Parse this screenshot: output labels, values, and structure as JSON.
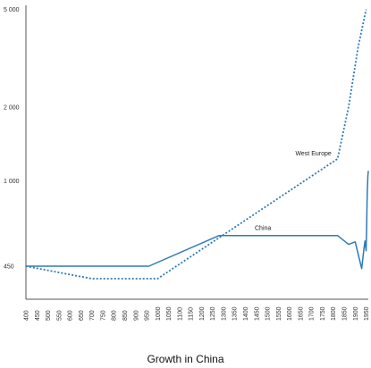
{
  "caption": "Growth in China",
  "chart_data": {
    "type": "line",
    "y_scale": "log",
    "ylim": [
      330,
      5200
    ],
    "xlim": [
      400,
      1960
    ],
    "y_ticks": [
      450,
      1000,
      2000,
      5000
    ],
    "y_tick_labels": [
      "450",
      "1 000",
      "2 000",
      "5 000"
    ],
    "x_ticks": [
      400,
      450,
      500,
      550,
      600,
      650,
      700,
      750,
      800,
      850,
      900,
      950,
      1000,
      1050,
      1100,
      1150,
      1200,
      1250,
      1300,
      1350,
      1400,
      1450,
      1500,
      1550,
      1600,
      1650,
      1700,
      1750,
      1800,
      1850,
      1900,
      1950
    ],
    "grid": false,
    "colors": {
      "series": "#2f7ab8",
      "axis": "#555555"
    },
    "series": [
      {
        "name": "China",
        "style": "solid",
        "x": [
          400,
          960,
          1280,
          1820,
          1870,
          1900,
          1930,
          1940,
          1945,
          1950,
          1952,
          1955,
          1957,
          1958,
          1960
        ],
        "y": [
          450,
          450,
          600,
          600,
          552,
          565,
          440,
          530,
          570,
          520,
          620,
          900,
          1000,
          1050,
          1100
        ]
      },
      {
        "name": "West Europe",
        "style": "dotted",
        "x": [
          400,
          700,
          1000,
          1820,
          1870,
          1913,
          1950
        ],
        "y": [
          450,
          400,
          400,
          1232,
          2000,
          3500,
          5000
        ]
      }
    ]
  }
}
